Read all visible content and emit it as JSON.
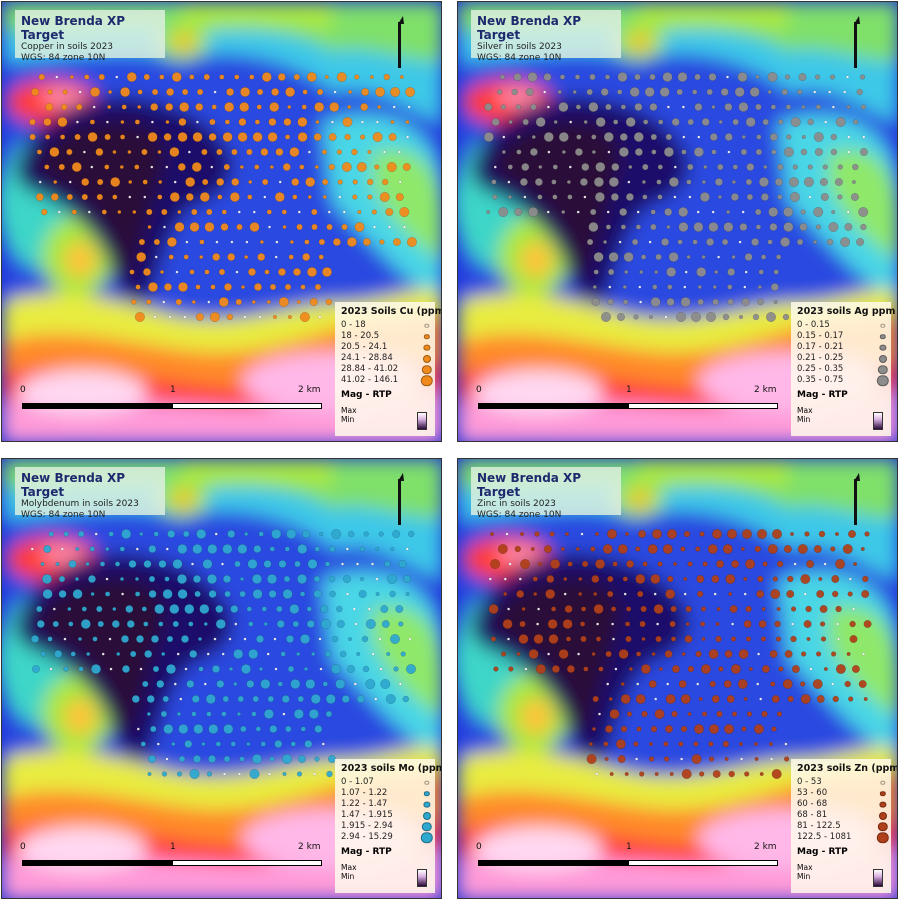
{
  "panels": [
    {
      "title": "New Brenda XP Target",
      "subtitle": "Copper in soils 2023",
      "crs": "WGS: 84 zone 10N",
      "legend_title": "2023 Soils Cu (ppm)",
      "classes": [
        "0 - 18",
        "18 - 20.5",
        "20.5 - 24.1",
        "24.1 - 28.84",
        "28.84 - 41.02",
        "41.02 - 146.1"
      ],
      "fill": "#f08a1c",
      "mag_label": "Mag - RTP",
      "ramp_labels": [
        "Max",
        "Min"
      ],
      "scale": {
        "start": "0",
        "mid": "1",
        "end": "2 km"
      }
    },
    {
      "title": "New Brenda XP Target",
      "subtitle": "Silver in soils 2023",
      "crs": "WGS: 84 zone 10N",
      "legend_title": "2023 soils Ag ppm",
      "classes": [
        "0 - 0.15",
        "0.15 - 0.17",
        "0.17 - 0.21",
        "0.21 - 0.25",
        "0.25 - 0.35",
        "0.35 - 0.75"
      ],
      "fill": "#8c8c8c",
      "mag_label": "Mag - RTP",
      "ramp_labels": [
        "Max",
        "Min"
      ],
      "scale": {
        "start": "0",
        "mid": "1",
        "end": "2 km"
      }
    },
    {
      "title": "New Brenda XP Target",
      "subtitle": "Molybdenum in soils 2023",
      "crs": "WGS: 84 zone 10N",
      "legend_title": "2023 soils Mo (ppm)",
      "classes": [
        "0 - 1.07",
        "1.07 - 1.22",
        "1.22 - 1.47",
        "1.47 - 1.915",
        "1.915 - 2.94",
        "2.94 - 15.29"
      ],
      "fill": "#2fa8d0",
      "mag_label": "Mag - RTP",
      "ramp_labels": [
        "Max",
        "Min"
      ],
      "scale": {
        "start": "0",
        "mid": "1",
        "end": "2 km"
      }
    },
    {
      "title": "New Brenda XP Target",
      "subtitle": "Zinc in soils 2023",
      "crs": "WGS: 84 zone 10N",
      "legend_title": "2023 soils Zn (ppm)",
      "classes": [
        "0 - 53",
        "53 - 60",
        "60 - 68",
        "68 - 81",
        "81 - 122.5",
        "122.5 - 1081"
      ],
      "fill": "#b0401a",
      "mag_label": "Mag - RTP",
      "ramp_labels": [
        "Max",
        "Min"
      ],
      "scale": {
        "start": "0",
        "mid": "1",
        "end": "2 km"
      }
    }
  ]
}
